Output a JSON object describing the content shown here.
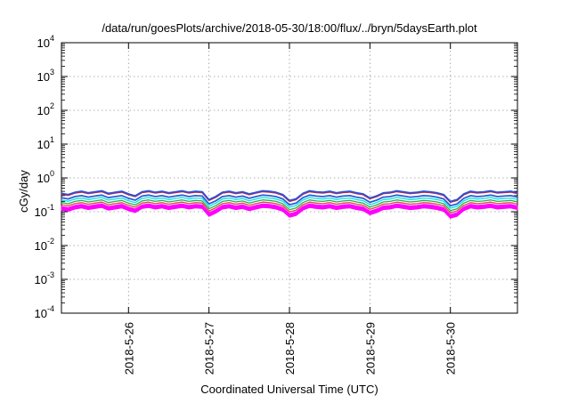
{
  "chart_data": {
    "type": "line",
    "title": "/data/run/goesPlots/archive/2018-05-30/18:00/flux/../bryn/5daysEarth.plot",
    "xlabel": "Coordinated Universal Time (UTC)",
    "ylabel": "cGy/day",
    "y_scale": "log",
    "ylim": [
      0.0001,
      10000
    ],
    "y_ticks": [
      {
        "base": "10",
        "exp": "-4",
        "value": 0.0001
      },
      {
        "base": "10",
        "exp": "-3",
        "value": 0.001
      },
      {
        "base": "10",
        "exp": "-2",
        "value": 0.01
      },
      {
        "base": "10",
        "exp": "-1",
        "value": 0.1
      },
      {
        "base": "10",
        "exp": "0",
        "value": 1
      },
      {
        "base": "10",
        "exp": "1",
        "value": 10
      },
      {
        "base": "10",
        "exp": "2",
        "value": 100
      },
      {
        "base": "10",
        "exp": "3",
        "value": 1000
      },
      {
        "base": "10",
        "exp": "4",
        "value": 10000
      }
    ],
    "xlim": [
      "2018-05-25T04:00",
      "2018-05-30T20:00"
    ],
    "x_ticks": [
      {
        "label": "2018-5-26",
        "date": "2018-05-26T00:00"
      },
      {
        "label": "2018-5-27",
        "date": "2018-05-27T00:00"
      },
      {
        "label": "2018-5-28",
        "date": "2018-05-28T00:00"
      },
      {
        "label": "2018-5-29",
        "date": "2018-05-29T00:00"
      },
      {
        "label": "2018-5-30",
        "date": "2018-05-30T00:00"
      }
    ],
    "grid": true,
    "legend": "none",
    "series_style": [
      {
        "color": "#ff00ff",
        "fill": true
      },
      {
        "color": "#e8384f"
      },
      {
        "color": "#2eab4a"
      },
      {
        "color": "#00e5e5"
      },
      {
        "color": "#2a5fd6"
      },
      {
        "color": "#e3232c"
      },
      {
        "color": "#2a4fd8"
      }
    ],
    "series_scale": [
      0.55,
      0.62,
      0.72,
      0.85,
      1.0,
      1.28,
      1.34
    ],
    "base_series": {
      "x": [
        "2018-05-25T04:00",
        "2018-05-25T06:00",
        "2018-05-25T08:00",
        "2018-05-25T10:00",
        "2018-05-25T12:00",
        "2018-05-25T14:00",
        "2018-05-25T16:00",
        "2018-05-25T18:00",
        "2018-05-25T20:00",
        "2018-05-25T22:00",
        "2018-05-26T00:00",
        "2018-05-26T02:00",
        "2018-05-26T04:00",
        "2018-05-26T06:00",
        "2018-05-26T08:00",
        "2018-05-26T10:00",
        "2018-05-26T12:00",
        "2018-05-26T14:00",
        "2018-05-26T16:00",
        "2018-05-26T18:00",
        "2018-05-26T20:00",
        "2018-05-26T22:00",
        "2018-05-27T00:00",
        "2018-05-27T02:00",
        "2018-05-27T04:00",
        "2018-05-27T06:00",
        "2018-05-27T08:00",
        "2018-05-27T10:00",
        "2018-05-27T12:00",
        "2018-05-27T14:00",
        "2018-05-27T16:00",
        "2018-05-27T18:00",
        "2018-05-27T20:00",
        "2018-05-27T22:00",
        "2018-05-28T00:00",
        "2018-05-28T02:00",
        "2018-05-28T04:00",
        "2018-05-28T06:00",
        "2018-05-28T08:00",
        "2018-05-28T10:00",
        "2018-05-28T12:00",
        "2018-05-28T14:00",
        "2018-05-28T16:00",
        "2018-05-28T18:00",
        "2018-05-28T20:00",
        "2018-05-28T22:00",
        "2018-05-29T00:00",
        "2018-05-29T02:00",
        "2018-05-29T04:00",
        "2018-05-29T06:00",
        "2018-05-29T08:00",
        "2018-05-29T10:00",
        "2018-05-29T12:00",
        "2018-05-29T14:00",
        "2018-05-29T16:00",
        "2018-05-29T18:00",
        "2018-05-29T20:00",
        "2018-05-29T22:00",
        "2018-05-30T00:00",
        "2018-05-30T02:00",
        "2018-05-30T04:00",
        "2018-05-30T06:00",
        "2018-05-30T08:00",
        "2018-05-30T10:00",
        "2018-05-30T12:00",
        "2018-05-30T14:00",
        "2018-05-30T16:00",
        "2018-05-30T18:00",
        "2018-05-30T20:00"
      ],
      "y": [
        0.26,
        0.24,
        0.28,
        0.3,
        0.27,
        0.29,
        0.31,
        0.26,
        0.28,
        0.3,
        0.25,
        0.22,
        0.29,
        0.31,
        0.28,
        0.3,
        0.27,
        0.29,
        0.31,
        0.28,
        0.3,
        0.29,
        0.17,
        0.21,
        0.28,
        0.3,
        0.27,
        0.29,
        0.25,
        0.28,
        0.31,
        0.3,
        0.28,
        0.24,
        0.16,
        0.18,
        0.26,
        0.31,
        0.29,
        0.28,
        0.3,
        0.27,
        0.29,
        0.3,
        0.27,
        0.25,
        0.19,
        0.22,
        0.27,
        0.28,
        0.31,
        0.29,
        0.27,
        0.28,
        0.3,
        0.29,
        0.27,
        0.24,
        0.15,
        0.17,
        0.25,
        0.3,
        0.28,
        0.29,
        0.31,
        0.28,
        0.29,
        0.3,
        0.27
      ]
    }
  }
}
